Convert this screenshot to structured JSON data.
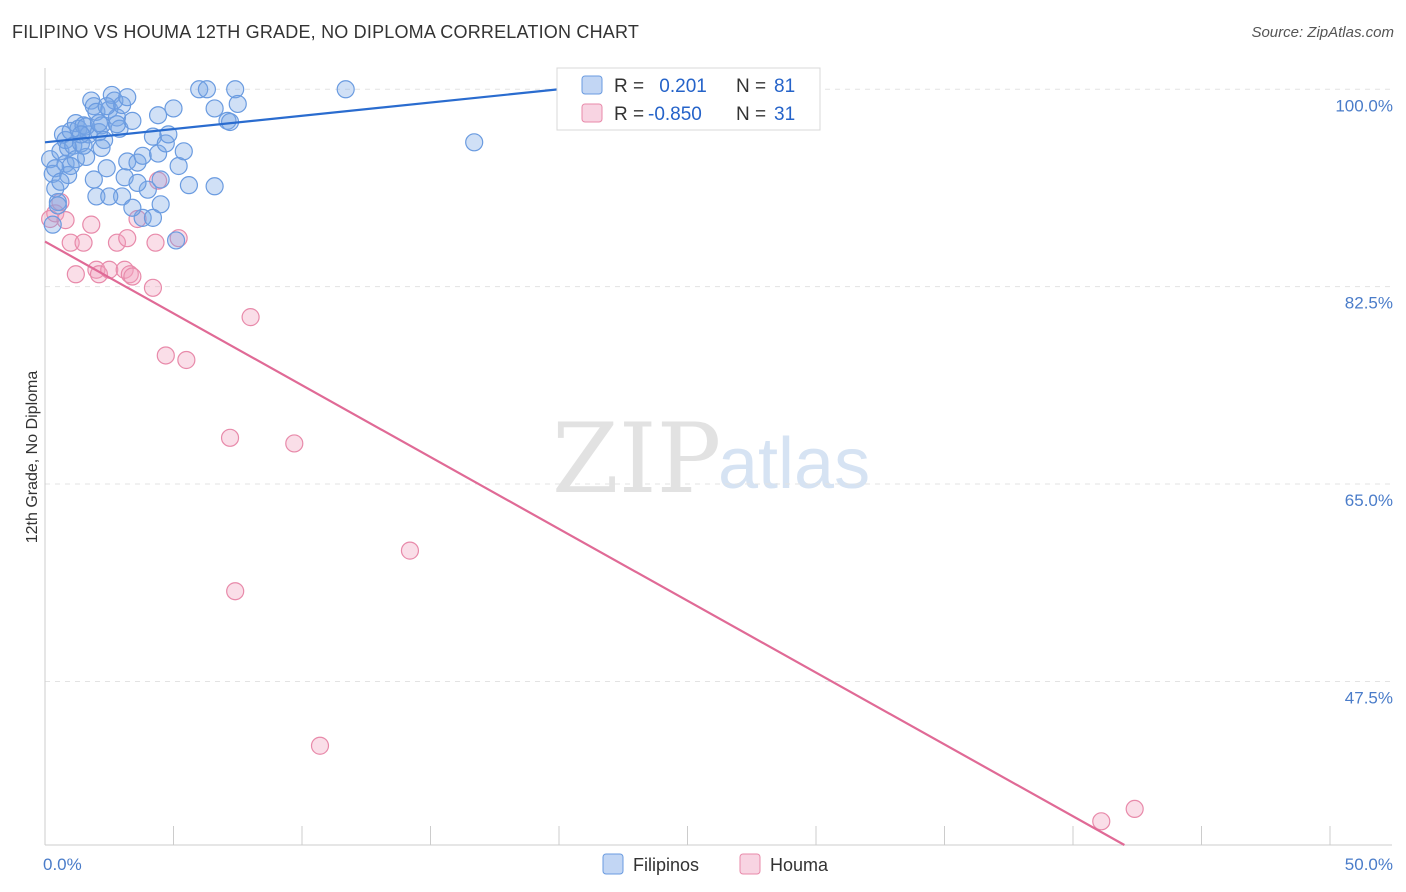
{
  "title": "FILIPINO VS HOUMA 12TH GRADE, NO DIPLOMA CORRELATION CHART",
  "source": "Source: ZipAtlas.com",
  "watermark": {
    "zip": "ZIP",
    "atlas": "atlas"
  },
  "colors": {
    "blue": "#6a9be0",
    "blue_fill": "rgba(120,165,230,0.35)",
    "blue_line": "#2a6ccf",
    "pink": "#e88aaa",
    "pink_fill": "rgba(240,160,190,0.35)",
    "pink_line": "#e06a96",
    "axis_text": "#4a7cc9"
  },
  "legend": {
    "rows": [
      {
        "r_label": "R =",
        "r_value": " 0.201",
        "n_label": "N =",
        "n_value": "81"
      },
      {
        "r_label": "R =",
        "r_value": "-0.850",
        "n_label": "N =",
        "n_value": "31"
      }
    ]
  },
  "bottom_legend": [
    "Filipinos",
    "Houma"
  ],
  "chart_data": {
    "type": "scatter",
    "title": "FILIPINO VS HOUMA 12TH GRADE, NO DIPLOMA CORRELATION CHART",
    "xlabel": "",
    "ylabel": "12th Grade, No Diploma",
    "xlim": [
      0,
      50
    ],
    "ylim": [
      33,
      101
    ],
    "x_tick_labels": [
      "0.0%",
      "50.0%"
    ],
    "y_ticks": [
      {
        "value": 100.0,
        "label": "100.0%"
      },
      {
        "value": 82.5,
        "label": "82.5%"
      },
      {
        "value": 65.0,
        "label": "65.0%"
      },
      {
        "value": 47.5,
        "label": "47.5%"
      }
    ],
    "series": [
      {
        "name": "Filipinos",
        "R": 0.201,
        "N": 81,
        "trend": {
          "x0": 0,
          "y0": 95.3,
          "x1": 20,
          "y1": 100.0
        },
        "points": [
          [
            0.2,
            93.8
          ],
          [
            0.3,
            92.5
          ],
          [
            0.4,
            91.2
          ],
          [
            0.5,
            90.0
          ],
          [
            0.6,
            94.5
          ],
          [
            0.7,
            96.0
          ],
          [
            0.8,
            95.5
          ],
          [
            0.9,
            94.8
          ],
          [
            1.0,
            96.3
          ],
          [
            1.1,
            95.0
          ],
          [
            1.2,
            97.0
          ],
          [
            1.3,
            96.5
          ],
          [
            1.4,
            95.2
          ],
          [
            1.5,
            96.8
          ],
          [
            1.6,
            94.0
          ],
          [
            1.7,
            96.0
          ],
          [
            1.8,
            99.0
          ],
          [
            1.9,
            98.5
          ],
          [
            2.0,
            98.0
          ],
          [
            2.1,
            96.2
          ],
          [
            2.2,
            96.8
          ],
          [
            2.3,
            95.5
          ],
          [
            2.4,
            93.0
          ],
          [
            2.5,
            98.2
          ],
          [
            2.6,
            99.5
          ],
          [
            2.7,
            99.0
          ],
          [
            2.8,
            97.5
          ],
          [
            2.9,
            96.5
          ],
          [
            3.0,
            98.6
          ],
          [
            3.1,
            92.2
          ],
          [
            3.2,
            93.6
          ],
          [
            3.4,
            97.2
          ],
          [
            3.6,
            93.5
          ],
          [
            3.8,
            94.1
          ],
          [
            4.0,
            91.1
          ],
          [
            4.2,
            95.8
          ],
          [
            4.4,
            94.3
          ],
          [
            4.5,
            92.0
          ],
          [
            4.7,
            95.2
          ],
          [
            5.0,
            98.3
          ],
          [
            5.2,
            93.2
          ],
          [
            5.4,
            94.5
          ],
          [
            5.6,
            91.5
          ],
          [
            6.0,
            100.0
          ],
          [
            6.3,
            100.0
          ],
          [
            6.6,
            98.3
          ],
          [
            7.1,
            97.2
          ],
          [
            7.4,
            100.0
          ],
          [
            7.5,
            98.7
          ],
          [
            11.7,
            100.0
          ],
          [
            16.7,
            95.3
          ],
          [
            3.0,
            90.5
          ],
          [
            3.8,
            88.6
          ],
          [
            2.0,
            90.5
          ],
          [
            0.3,
            88.0
          ],
          [
            0.5,
            89.7
          ],
          [
            0.8,
            93.4
          ],
          [
            1.2,
            93.8
          ],
          [
            1.5,
            95.0
          ],
          [
            2.2,
            94.8
          ],
          [
            2.5,
            90.5
          ],
          [
            3.4,
            89.5
          ],
          [
            4.5,
            89.8
          ],
          [
            5.1,
            86.6
          ],
          [
            6.6,
            91.4
          ],
          [
            3.6,
            91.7
          ],
          [
            2.8,
            96.9
          ],
          [
            1.9,
            92.0
          ],
          [
            0.9,
            92.4
          ],
          [
            1.0,
            93.2
          ],
          [
            1.6,
            96.7
          ],
          [
            2.4,
            98.5
          ],
          [
            3.2,
            99.3
          ],
          [
            4.4,
            97.7
          ],
          [
            4.8,
            96.0
          ],
          [
            0.4,
            93.0
          ],
          [
            0.6,
            91.8
          ],
          [
            1.4,
            96.0
          ],
          [
            2.1,
            97.0
          ],
          [
            7.2,
            97.1
          ],
          [
            4.2,
            88.6
          ]
        ]
      },
      {
        "name": "Houma",
        "R": -0.85,
        "N": 31,
        "trend": {
          "x0": 0,
          "y0": 86.5,
          "x1": 42.0,
          "y1": 33.0
        },
        "points": [
          [
            0.2,
            88.5
          ],
          [
            0.4,
            89.0
          ],
          [
            0.6,
            90.0
          ],
          [
            0.8,
            88.4
          ],
          [
            1.0,
            86.4
          ],
          [
            1.5,
            86.4
          ],
          [
            1.2,
            83.6
          ],
          [
            1.8,
            88.0
          ],
          [
            2.0,
            84.0
          ],
          [
            2.1,
            83.6
          ],
          [
            2.5,
            84.0
          ],
          [
            2.8,
            86.4
          ],
          [
            3.1,
            84.0
          ],
          [
            3.2,
            86.8
          ],
          [
            3.3,
            83.6
          ],
          [
            3.6,
            88.5
          ],
          [
            4.2,
            82.4
          ],
          [
            4.3,
            86.4
          ],
          [
            4.4,
            91.9
          ],
          [
            5.2,
            86.8
          ],
          [
            4.7,
            76.4
          ],
          [
            5.5,
            76.0
          ],
          [
            7.2,
            69.1
          ],
          [
            7.4,
            55.5
          ],
          [
            8.0,
            79.8
          ],
          [
            9.7,
            68.6
          ],
          [
            10.7,
            41.8
          ],
          [
            14.2,
            59.1
          ],
          [
            41.1,
            35.1
          ],
          [
            42.4,
            36.2
          ],
          [
            3.4,
            83.4
          ]
        ]
      }
    ]
  }
}
